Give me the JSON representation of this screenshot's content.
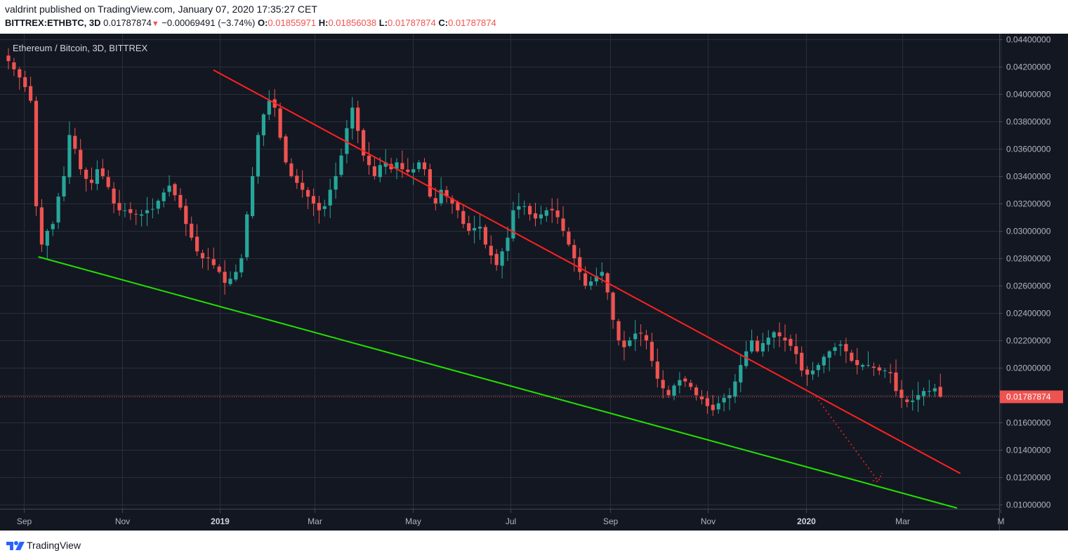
{
  "header": {
    "publisher_line": "valdrint published on TradingView.com, January 07, 2020 17:35:27 CET",
    "symbol": "BITTREX:ETHBTC, 3D",
    "last_price": "0.01787874",
    "change": "−0.00069491 (−3.74%)",
    "open_label": "O:",
    "open": "0.01855971",
    "high_label": "H:",
    "high": "0.01856038",
    "low_label": "L:",
    "low": "0.01787874",
    "close_label": "C:",
    "close": "0.01787874"
  },
  "footer": {
    "brand": "TradingView"
  },
  "colors": {
    "background": "#131722",
    "grid": "#2a2e39",
    "up": "#26a69a",
    "down": "#ef5350",
    "resistance": "#ff2020",
    "support": "#22e000",
    "price_marker": "#ef5350"
  },
  "chart_data": {
    "type": "candlestick",
    "title": "Ethereum / Bitcoin, 3D, BITTREX",
    "ylim": [
      0.0097,
      0.0444
    ],
    "y_ticks": [
      "0.04400000",
      "0.04200000",
      "0.04000000",
      "0.03800000",
      "0.03600000",
      "0.03400000",
      "0.03200000",
      "0.03000000",
      "0.02800000",
      "0.02600000",
      "0.02400000",
      "0.02200000",
      "0.02000000",
      "0.01800000",
      "0.01600000",
      "0.01400000",
      "0.01200000",
      "0.01000000"
    ],
    "x_ticks": [
      {
        "label": "Sep",
        "date": "2018-09-01",
        "bold": false
      },
      {
        "label": "Nov",
        "date": "2018-11-01",
        "bold": false
      },
      {
        "label": "2019",
        "date": "2019-01-01",
        "bold": true
      },
      {
        "label": "Mar",
        "date": "2019-03-01",
        "bold": false
      },
      {
        "label": "May",
        "date": "2019-05-01",
        "bold": false
      },
      {
        "label": "Jul",
        "date": "2019-07-01",
        "bold": false
      },
      {
        "label": "Sep",
        "date": "2019-09-01",
        "bold": false
      },
      {
        "label": "Nov",
        "date": "2019-11-01",
        "bold": false
      },
      {
        "label": "2020",
        "date": "2020-01-01",
        "bold": true
      },
      {
        "label": "Mar",
        "date": "2020-03-01",
        "bold": false
      },
      {
        "label": "M",
        "date": "2020-05-01",
        "bold": false
      }
    ],
    "current_price_label": "0.01787874",
    "current_price": 0.01787874,
    "candles_close": [
      0.0424,
      0.0418,
      0.0412,
      0.0405,
      0.0395,
      0.0318,
      0.029,
      0.03,
      0.0305,
      0.0325,
      0.034,
      0.037,
      0.036,
      0.0345,
      0.0338,
      0.0335,
      0.0345,
      0.034,
      0.0332,
      0.032,
      0.0315,
      0.0315,
      0.0313,
      0.0312,
      0.0312,
      0.0315,
      0.0316,
      0.0322,
      0.0328,
      0.0333,
      0.0326,
      0.0317,
      0.0305,
      0.0295,
      0.0285,
      0.028,
      0.028,
      0.0275,
      0.027,
      0.0262,
      0.0265,
      0.027,
      0.028,
      0.0312,
      0.034,
      0.037,
      0.0385,
      0.0395,
      0.039,
      0.0368,
      0.035,
      0.034,
      0.0335,
      0.033,
      0.0325,
      0.032,
      0.0315,
      0.0318,
      0.033,
      0.034,
      0.0355,
      0.0375,
      0.039,
      0.0373,
      0.0355,
      0.0348,
      0.034,
      0.0348,
      0.035,
      0.0345,
      0.035,
      0.0345,
      0.0343,
      0.0345,
      0.035,
      0.0345,
      0.0325,
      0.032,
      0.033,
      0.0325,
      0.032,
      0.0315,
      0.0305,
      0.03,
      0.0302,
      0.0303,
      0.029,
      0.0282,
      0.0275,
      0.0285,
      0.0295,
      0.0315,
      0.0318,
      0.0318,
      0.0312,
      0.0309,
      0.0312,
      0.0315,
      0.0315,
      0.031,
      0.03,
      0.029,
      0.028,
      0.027,
      0.026,
      0.0263,
      0.0267,
      0.027,
      0.0255,
      0.0235,
      0.022,
      0.0215,
      0.022,
      0.0225,
      0.0225,
      0.022,
      0.0205,
      0.0192,
      0.0185,
      0.018,
      0.0187,
      0.0191,
      0.019,
      0.0186,
      0.018,
      0.0177,
      0.0172,
      0.0169,
      0.0174,
      0.0178,
      0.018,
      0.019,
      0.0202,
      0.0212,
      0.022,
      0.0212,
      0.0218,
      0.0222,
      0.0226,
      0.0223,
      0.022,
      0.0216,
      0.021,
      0.0198,
      0.0195,
      0.0198,
      0.0202,
      0.0208,
      0.0212,
      0.0215,
      0.0217,
      0.0212,
      0.0205,
      0.0202,
      0.0202,
      0.0202,
      0.02,
      0.0198,
      0.0198,
      0.0196,
      0.0183,
      0.0178,
      0.0175,
      0.0176,
      0.018,
      0.0183,
      0.0183,
      0.0185,
      0.0179
    ]
  },
  "annotations": {
    "resistance_line": {
      "from": {
        "date": "2018-12-28",
        "price": 0.04175
      },
      "to": {
        "date": "2020-04-06",
        "price": 0.01228
      }
    },
    "support_line": {
      "from": {
        "date": "2018-09-10",
        "price": 0.0281
      },
      "to": {
        "date": "2020-04-04",
        "price": 0.00975
      }
    },
    "projection": {
      "from": {
        "date": "2020-01-07",
        "price": 0.0179
      },
      "to": {
        "date": "2020-02-15",
        "price": 0.0117
      }
    }
  }
}
